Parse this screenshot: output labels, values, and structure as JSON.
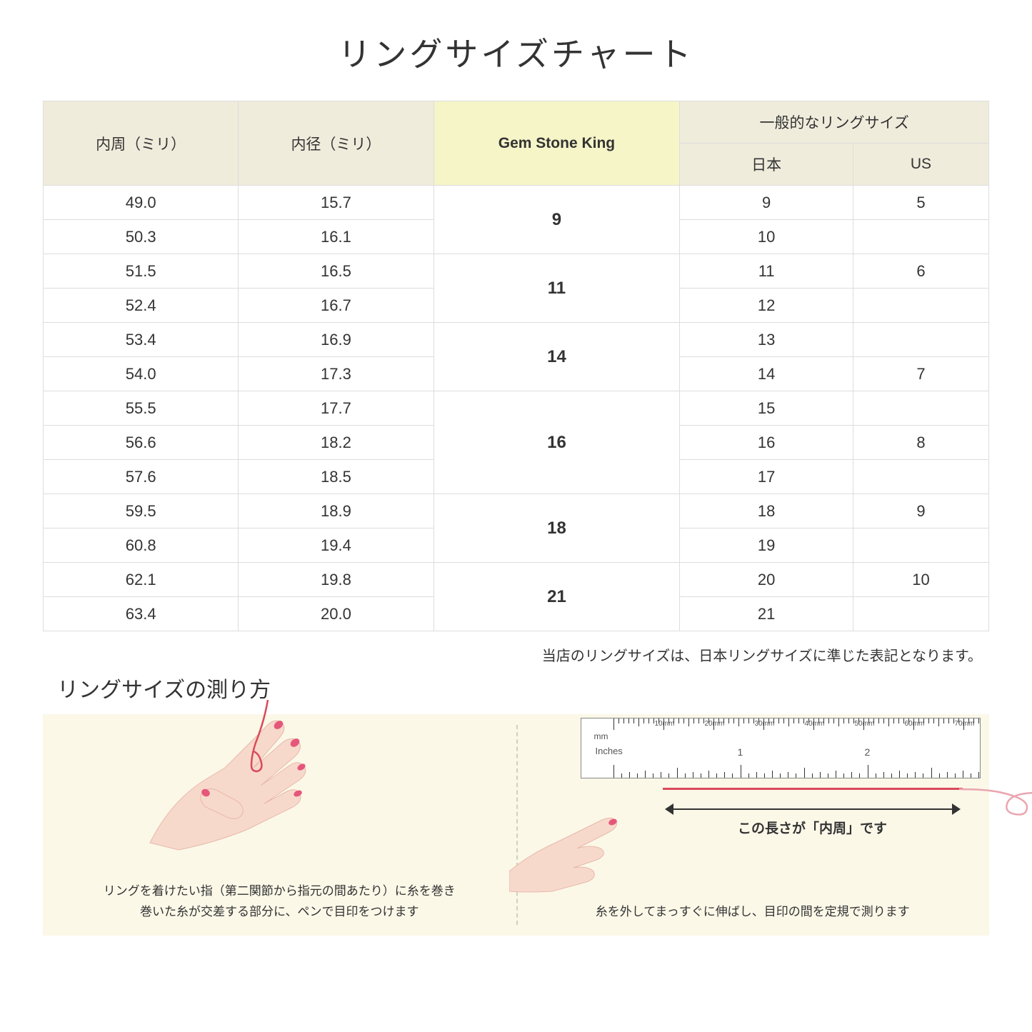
{
  "title": "リングサイズチャート",
  "table": {
    "headers": {
      "circumference": "内周（ミリ）",
      "diameter": "内径（ミリ）",
      "gsk": "Gem Stone King",
      "general": "一般的なリングサイズ",
      "japan": "日本",
      "us": "US"
    },
    "header_bg": "#f0ecdc",
    "highlight_bg": "#f6f5c8",
    "border_color": "#dddddd",
    "groups": [
      {
        "gsk": "9",
        "rows": [
          {
            "c": "49.0",
            "d": "15.7",
            "jp": "9",
            "us": "5"
          },
          {
            "c": "50.3",
            "d": "16.1",
            "jp": "10",
            "us": ""
          }
        ]
      },
      {
        "gsk": "11",
        "rows": [
          {
            "c": "51.5",
            "d": "16.5",
            "jp": "11",
            "us": "6"
          },
          {
            "c": "52.4",
            "d": "16.7",
            "jp": "12",
            "us": ""
          }
        ]
      },
      {
        "gsk": "14",
        "rows": [
          {
            "c": "53.4",
            "d": "16.9",
            "jp": "13",
            "us": ""
          },
          {
            "c": "54.0",
            "d": "17.3",
            "jp": "14",
            "us": "7"
          }
        ]
      },
      {
        "gsk": "16",
        "rows": [
          {
            "c": "55.5",
            "d": "17.7",
            "jp": "15",
            "us": ""
          },
          {
            "c": "56.6",
            "d": "18.2",
            "jp": "16",
            "us": "8"
          },
          {
            "c": "57.6",
            "d": "18.5",
            "jp": "17",
            "us": ""
          }
        ]
      },
      {
        "gsk": "18",
        "rows": [
          {
            "c": "59.5",
            "d": "18.9",
            "jp": "18",
            "us": "9"
          },
          {
            "c": "60.8",
            "d": "19.4",
            "jp": "19",
            "us": ""
          }
        ]
      },
      {
        "gsk": "21",
        "rows": [
          {
            "c": "62.1",
            "d": "19.8",
            "jp": "20",
            "us": "10"
          },
          {
            "c": "63.4",
            "d": "20.0",
            "jp": "21",
            "us": ""
          }
        ]
      }
    ]
  },
  "footnote": "当店のリングサイズは、日本リングサイズに準じた表記となります。",
  "measure": {
    "title": "リングサイズの測り方",
    "bg_color": "#fbf8e8",
    "left_caption": "リングを着けたい指（第二関節から指元の間あたり）に糸を巻き\n巻いた糸が交差する部分に、ペンで目印をつけます",
    "right_caption": "糸を外してまっすぐに伸ばし、目印の間を定規で測ります",
    "arrow_label": "この長さが「内周」です",
    "ruler": {
      "mm_unit": "mm",
      "mm_labels": [
        "10mm",
        "20mm",
        "30mm",
        "40mm",
        "50mm",
        "60mm",
        "70mm"
      ],
      "inches_label": "Inches",
      "inch_numbers": [
        "1",
        "2"
      ]
    },
    "skin_color": "#f7d9cc",
    "nail_color": "#e5577a",
    "thread_color": "#d94a5a"
  }
}
